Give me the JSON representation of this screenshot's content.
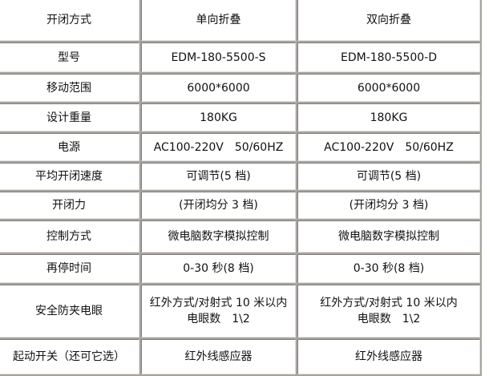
{
  "table": {
    "header": [
      "开闭方式",
      "单向折叠",
      "双向折叠"
    ],
    "rows": [
      [
        "型号",
        "EDM-180-5500-S",
        "EDM-180-5500-D"
      ],
      [
        "移动范围",
        "6000*6000",
        "6000*6000"
      ],
      [
        "设计重量",
        "180KG",
        "180KG"
      ],
      [
        "电源",
        "AC100-220V　50/60HZ",
        "AC100-220V　50/60HZ"
      ],
      [
        "平均开闭速度",
        "可调节(5 档)",
        "可调节(5 档)"
      ],
      [
        "开闭力",
        "(开闭均分 3 档)",
        "(开闭均分 3 档)"
      ],
      [
        "控制方式",
        "微电脑数字模拟控制",
        "微电脑数字模拟控制"
      ],
      [
        "再停时间",
        "0-30 秒(8 档)",
        "0-30 秒(8 档)"
      ],
      [
        "安全防夹电眼",
        "红外方式/对射式 10 米以内\n电眼数　1\\2",
        "红外方式/对射式 10 米以内\n电眼数　1\\2"
      ],
      [
        "起动开关（还可它选）",
        "红外线感应器",
        "红外线感应器"
      ]
    ]
  }
}
